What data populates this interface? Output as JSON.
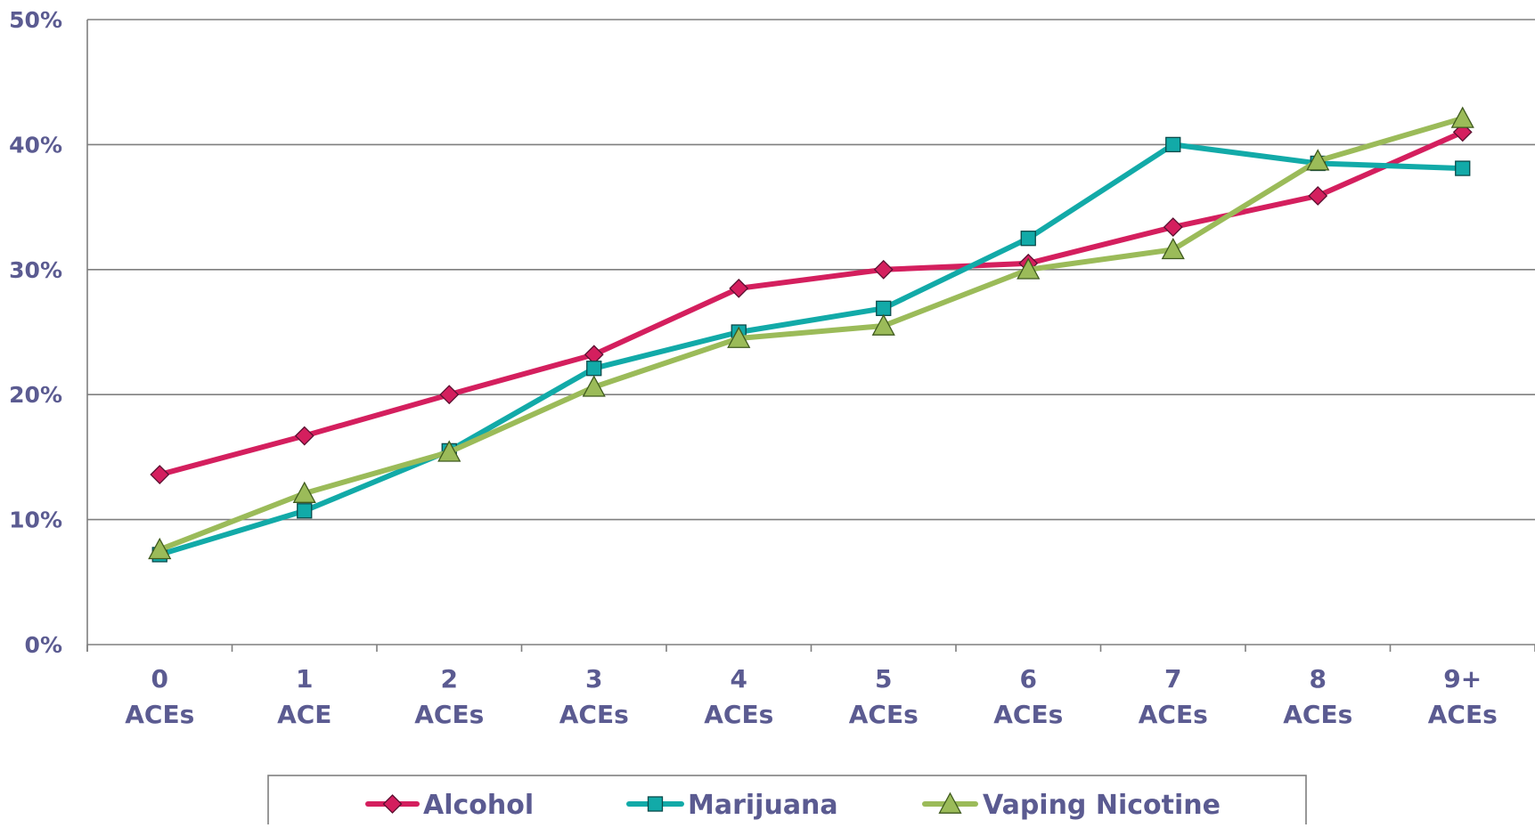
{
  "chart_data": {
    "type": "line",
    "title": "",
    "xlabel": "",
    "ylabel": "",
    "categories": [
      {
        "line1": "0",
        "line2": "ACEs"
      },
      {
        "line1": "1",
        "line2": "ACE"
      },
      {
        "line1": "2",
        "line2": "ACEs"
      },
      {
        "line1": "3",
        "line2": "ACEs"
      },
      {
        "line1": "4",
        "line2": "ACEs"
      },
      {
        "line1": "5",
        "line2": "ACEs"
      },
      {
        "line1": "6",
        "line2": "ACEs"
      },
      {
        "line1": "7",
        "line2": "ACEs"
      },
      {
        "line1": "8",
        "line2": "ACEs"
      },
      {
        "line1": "9+",
        "line2": "ACEs"
      }
    ],
    "ylim": [
      0,
      50
    ],
    "yticks": [
      0,
      10,
      20,
      30,
      40,
      50
    ],
    "ytick_labels": [
      "0%",
      "10%",
      "20%",
      "30%",
      "40%",
      "50%"
    ],
    "grid": true,
    "legend_position": "bottom",
    "series": [
      {
        "name": "Alcohol",
        "color": "#d41f5e",
        "marker": "diamond",
        "values": [
          13.6,
          16.7,
          20.0,
          23.2,
          28.5,
          30.0,
          30.5,
          33.4,
          35.9,
          41.0
        ]
      },
      {
        "name": "Marijuana",
        "color": "#12aaa8",
        "marker": "square",
        "values": [
          7.2,
          10.7,
          15.5,
          22.1,
          25.0,
          26.9,
          32.5,
          40.0,
          38.5,
          38.1
        ]
      },
      {
        "name": "Vaping Nicotine",
        "color": "#9bbb59",
        "marker": "triangle",
        "values": [
          7.6,
          12.1,
          15.4,
          20.6,
          24.5,
          25.5,
          30.0,
          31.6,
          38.7,
          42.1
        ]
      }
    ]
  }
}
